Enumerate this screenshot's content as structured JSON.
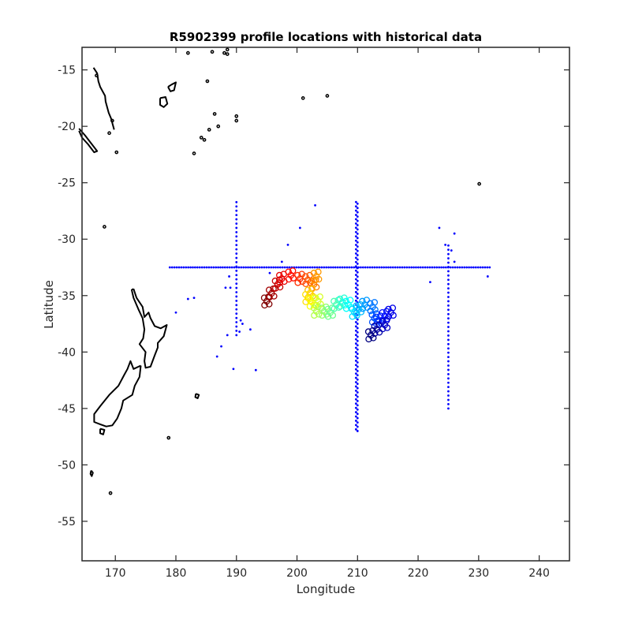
{
  "chart_data": {
    "type": "scatter",
    "title": "R5902399 profile locations with historical data",
    "xlabel": "Longitude",
    "ylabel": "Latitude",
    "xlim": [
      164.5,
      245
    ],
    "ylim": [
      -58.5,
      -13
    ],
    "xticks": [
      170,
      180,
      190,
      200,
      210,
      220,
      230,
      240
    ],
    "yticks": [
      -15,
      -20,
      -25,
      -30,
      -35,
      -40,
      -45,
      -50,
      -55
    ],
    "grid": false,
    "legend": "none",
    "colors": {
      "historical": "#0000ff",
      "coastline": "#000000",
      "frame": "#262626"
    },
    "colormap": "jet (dark red = earliest profile, dark blue = latest profile)",
    "historical_data": {
      "description": "blue dots",
      "lines": [
        {
          "orientation": "latitude",
          "value": -32.5,
          "from": 179,
          "to": 232
        },
        {
          "orientation": "longitude",
          "value": 190,
          "from": -26.5,
          "to": -38.5
        },
        {
          "orientation": "longitude",
          "value": 210,
          "from": -26.5,
          "to": -47
        },
        {
          "orientation": "longitude",
          "value": 225,
          "from": -30.5,
          "to": -45
        }
      ],
      "extra_points": [
        [
          203,
          -27
        ],
        [
          200.5,
          -29
        ],
        [
          198.5,
          -30.5
        ],
        [
          197.5,
          -32
        ],
        [
          195.5,
          -33
        ],
        [
          223.5,
          -29
        ],
        [
          224.5,
          -30.5
        ],
        [
          226,
          -29.5
        ],
        [
          225.5,
          -31
        ],
        [
          226,
          -32
        ],
        [
          222,
          -33.8
        ],
        [
          231.5,
          -33.3
        ],
        [
          182,
          -35.3
        ],
        [
          183,
          -35.2
        ],
        [
          180,
          -36.5
        ],
        [
          188.5,
          -38.5
        ],
        [
          187.5,
          -39.5
        ],
        [
          186.8,
          -40.4
        ],
        [
          189.5,
          -41.5
        ],
        [
          193.2,
          -41.6
        ],
        [
          188.2,
          -34.3
        ],
        [
          189,
          -34.3
        ],
        [
          188.8,
          -33.3
        ],
        [
          191,
          -37.5
        ],
        [
          190.5,
          -38.2
        ],
        [
          192.3,
          -38
        ],
        [
          190.7,
          -37.2
        ]
      ]
    },
    "float_track": {
      "description": "profile locations coloured by time order (open circles)",
      "points": [
        [
          195,
          -35.5
        ],
        [
          195.8,
          -34.8
        ],
        [
          196.8,
          -34
        ],
        [
          197.5,
          -33.5
        ],
        [
          199,
          -33.2
        ],
        [
          200.5,
          -33.5
        ],
        [
          201.8,
          -33.6
        ],
        [
          202.8,
          -34
        ],
        [
          203.2,
          -33.3
        ],
        [
          202.2,
          -34.8
        ],
        [
          201.8,
          -35.2
        ],
        [
          202.5,
          -35.6
        ],
        [
          203.5,
          -35.5
        ],
        [
          203.2,
          -36.4
        ],
        [
          204.5,
          -36.4
        ],
        [
          205.5,
          -36.5
        ],
        [
          206.5,
          -35.8
        ],
        [
          207.5,
          -35.6
        ],
        [
          208.5,
          -35.8
        ],
        [
          209.5,
          -36.5
        ],
        [
          210.2,
          -36.2
        ],
        [
          211.2,
          -35.8
        ],
        [
          212.5,
          -36
        ],
        [
          212.8,
          -37
        ],
        [
          213.5,
          -37.2
        ],
        [
          214.5,
          -36.8
        ],
        [
          215.5,
          -36.5
        ],
        [
          214.5,
          -37.6
        ],
        [
          213.2,
          -38
        ],
        [
          212.2,
          -38.5
        ]
      ]
    },
    "coastlines": [
      {
        "name": "North Island",
        "coords": [
          [
            173,
            -34.4
          ],
          [
            173.5,
            -35.2
          ],
          [
            174.5,
            -36
          ],
          [
            174.8,
            -36.9
          ],
          [
            175.5,
            -36.5
          ],
          [
            175.8,
            -37
          ],
          [
            176.5,
            -37.7
          ],
          [
            177.5,
            -37.9
          ],
          [
            178.5,
            -37.6
          ],
          [
            178,
            -38.6
          ],
          [
            177,
            -39.2
          ],
          [
            177,
            -39.6
          ],
          [
            176.5,
            -40.3
          ],
          [
            175.8,
            -41.3
          ],
          [
            175,
            -41.4
          ],
          [
            174.8,
            -40.8
          ],
          [
            175,
            -40
          ],
          [
            174,
            -39.3
          ],
          [
            174.6,
            -38.8
          ],
          [
            174.8,
            -38
          ],
          [
            174.5,
            -37
          ],
          [
            173.8,
            -36.2
          ],
          [
            173,
            -35.2
          ],
          [
            172.7,
            -34.5
          ],
          [
            173,
            -34.4
          ]
        ]
      },
      {
        "name": "South Island",
        "coords": [
          [
            174.2,
            -41.2
          ],
          [
            173,
            -41.5
          ],
          [
            172.5,
            -40.8
          ],
          [
            172,
            -41.5
          ],
          [
            171.5,
            -42
          ],
          [
            170.5,
            -43
          ],
          [
            169,
            -43.8
          ],
          [
            167.5,
            -44.8
          ],
          [
            166.5,
            -45.5
          ],
          [
            166.5,
            -46.2
          ],
          [
            167.5,
            -46.4
          ],
          [
            168.5,
            -46.6
          ],
          [
            169.5,
            -46.5
          ],
          [
            170.3,
            -45.9
          ],
          [
            171,
            -45
          ],
          [
            171.3,
            -44.3
          ],
          [
            172.8,
            -43.8
          ],
          [
            173.2,
            -43
          ],
          [
            174,
            -42.2
          ],
          [
            174.2,
            -41.2
          ]
        ]
      },
      {
        "name": "Stewart Island",
        "coords": [
          [
            167.5,
            -46.8
          ],
          [
            168.2,
            -46.9
          ],
          [
            168,
            -47.3
          ],
          [
            167.5,
            -47.2
          ],
          [
            167.5,
            -46.8
          ]
        ]
      },
      {
        "name": "Chatham Islands",
        "coords": [
          [
            183.3,
            -43.7
          ],
          [
            183.8,
            -43.8
          ],
          [
            183.6,
            -44.1
          ],
          [
            183.2,
            -44
          ],
          [
            183.3,
            -43.7
          ]
        ]
      },
      {
        "name": "Auckland Islands",
        "coords": [
          [
            166,
            -50.5
          ],
          [
            166.3,
            -50.7
          ],
          [
            166.1,
            -51
          ],
          [
            165.9,
            -50.8
          ],
          [
            166,
            -50.5
          ]
        ]
      },
      {
        "name": "Vanuatu",
        "coords": [
          [
            166.4,
            -14.8
          ],
          [
            167,
            -15.3
          ],
          [
            167.2,
            -16
          ],
          [
            167.5,
            -16.5
          ],
          [
            168.3,
            -17.3
          ],
          [
            168.4,
            -17.8
          ],
          [
            168.9,
            -18.8
          ],
          [
            169.3,
            -19.3
          ],
          [
            169.8,
            -20.3
          ]
        ]
      },
      {
        "name": "New Caledonia",
        "coords": [
          [
            164,
            -20.2
          ],
          [
            165,
            -20.8
          ],
          [
            166,
            -21.5
          ],
          [
            167,
            -22.2
          ],
          [
            166.5,
            -22.3
          ],
          [
            165.5,
            -21.6
          ],
          [
            164.5,
            -21
          ],
          [
            164,
            -20.4
          ]
        ]
      },
      {
        "name": "Fiji Viti Levu",
        "coords": [
          [
            177.4,
            -17.5
          ],
          [
            178.3,
            -17.4
          ],
          [
            178.6,
            -18
          ],
          [
            178,
            -18.3
          ],
          [
            177.4,
            -18.1
          ],
          [
            177.4,
            -17.5
          ]
        ]
      },
      {
        "name": "Fiji Vanua Levu",
        "coords": [
          [
            178.7,
            -16.5
          ],
          [
            179.3,
            -16.3
          ],
          [
            180,
            -16.1
          ],
          [
            179.7,
            -16.8
          ],
          [
            179.1,
            -16.9
          ],
          [
            178.7,
            -16.5
          ]
        ]
      }
    ],
    "small_islands": [
      [
        168.2,
        -28.9
      ],
      [
        166.9,
        -15.5
      ],
      [
        169.5,
        -19.5
      ],
      [
        169,
        -20.6
      ],
      [
        170.2,
        -22.3
      ],
      [
        182,
        -13.5
      ],
      [
        186,
        -13.4
      ],
      [
        188.5,
        -13.6
      ],
      [
        185.2,
        -16
      ],
      [
        186.4,
        -18.9
      ],
      [
        185.5,
        -20.3
      ],
      [
        187,
        -20
      ],
      [
        184.7,
        -21.2
      ],
      [
        184.2,
        -21
      ],
      [
        183,
        -22.4
      ],
      [
        190,
        -19.1
      ],
      [
        190,
        -19.5
      ],
      [
        201,
        -17.5
      ],
      [
        205,
        -17.3
      ],
      [
        230.1,
        -25.1
      ],
      [
        178.8,
        -47.6
      ],
      [
        169.2,
        -52.5
      ],
      [
        188.5,
        -13.2
      ],
      [
        188,
        -13.5
      ]
    ]
  }
}
